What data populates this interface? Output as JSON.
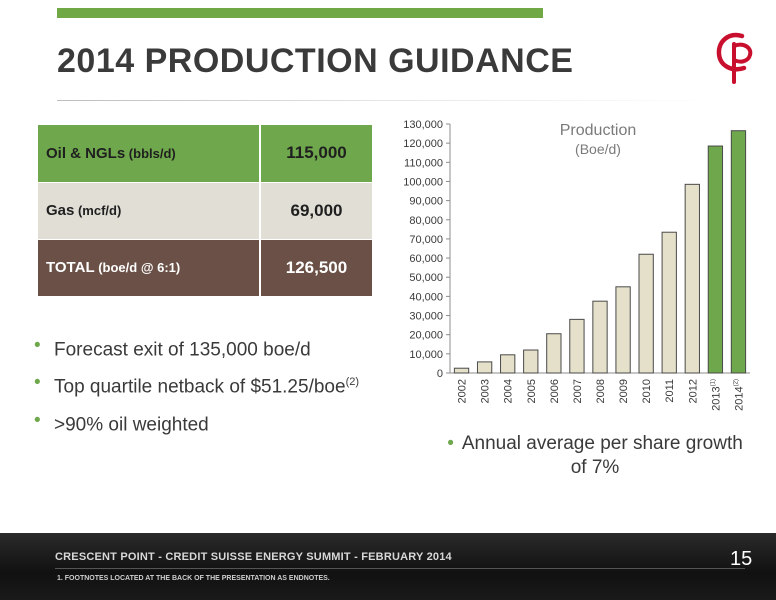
{
  "slide": {
    "title": "2014 PRODUCTION GUIDANCE",
    "accent_color": "#70a846"
  },
  "logo": {
    "icon": "crescent-point-cp-logo",
    "color": "#c8102e"
  },
  "table": {
    "rows": [
      {
        "label": "Oil & NGLs",
        "unit": " (bbls/d)",
        "value": "115,000",
        "color": "#6fa84c"
      },
      {
        "label": "Gas",
        "unit": " (mcf/d)",
        "value": "69,000",
        "color": "#e1ded6"
      },
      {
        "label": "TOTAL",
        "unit": " (boe/d @ 6:1)",
        "value": "126,500",
        "color": "#6a5046"
      }
    ]
  },
  "bullets": [
    {
      "text": "Forecast exit of 135,000 boe/d",
      "sup": ""
    },
    {
      "text": "Top quartile netback of $51.25/boe",
      "sup": "(2)"
    },
    {
      "text": ">90% oil weighted",
      "sup": ""
    }
  ],
  "growth_note": "Annual average per share growth of 7%",
  "chart_data": {
    "type": "bar",
    "title": "Production",
    "subtitle": "(Boe/d)",
    "categories": [
      "2002",
      "2003",
      "2004",
      "2005",
      "2006",
      "2007",
      "2008",
      "2009",
      "2010",
      "2011",
      "2012",
      "2013",
      "2014"
    ],
    "category_superscripts": [
      "",
      "",
      "",
      "",
      "",
      "",
      "",
      "",
      "",
      "",
      "",
      "(1)",
      "(2)"
    ],
    "values": [
      2500,
      5800,
      9500,
      12000,
      20500,
      28000,
      37500,
      45000,
      62000,
      73500,
      98500,
      118500,
      126500
    ],
    "bar_colors": [
      "#e4e0c9",
      "#e4e0c9",
      "#e4e0c9",
      "#e4e0c9",
      "#e4e0c9",
      "#e4e0c9",
      "#e4e0c9",
      "#e4e0c9",
      "#e4e0c9",
      "#e4e0c9",
      "#e4e0c9",
      "#6fa84c",
      "#6fa84c"
    ],
    "ylim": [
      0,
      130000
    ],
    "yticks": [
      "0",
      "10,000",
      "20,000",
      "30,000",
      "40,000",
      "50,000",
      "60,000",
      "70,000",
      "80,000",
      "90,000",
      "100,000",
      "110,000",
      "120,000",
      "130,000"
    ],
    "ytick_values": [
      0,
      10000,
      20000,
      30000,
      40000,
      50000,
      60000,
      70000,
      80000,
      90000,
      100000,
      110000,
      120000,
      130000
    ],
    "grid": false,
    "legend": "none"
  },
  "footer": {
    "text": "CRESCENT POINT  -  CREDIT SUISSE ENERGY SUMMIT  -  FEBRUARY 2014",
    "footnote": "1.    FOOTNOTES LOCATED AT THE BACK OF THE PRESENTATION AS ENDNOTES.",
    "page_number": "15"
  }
}
